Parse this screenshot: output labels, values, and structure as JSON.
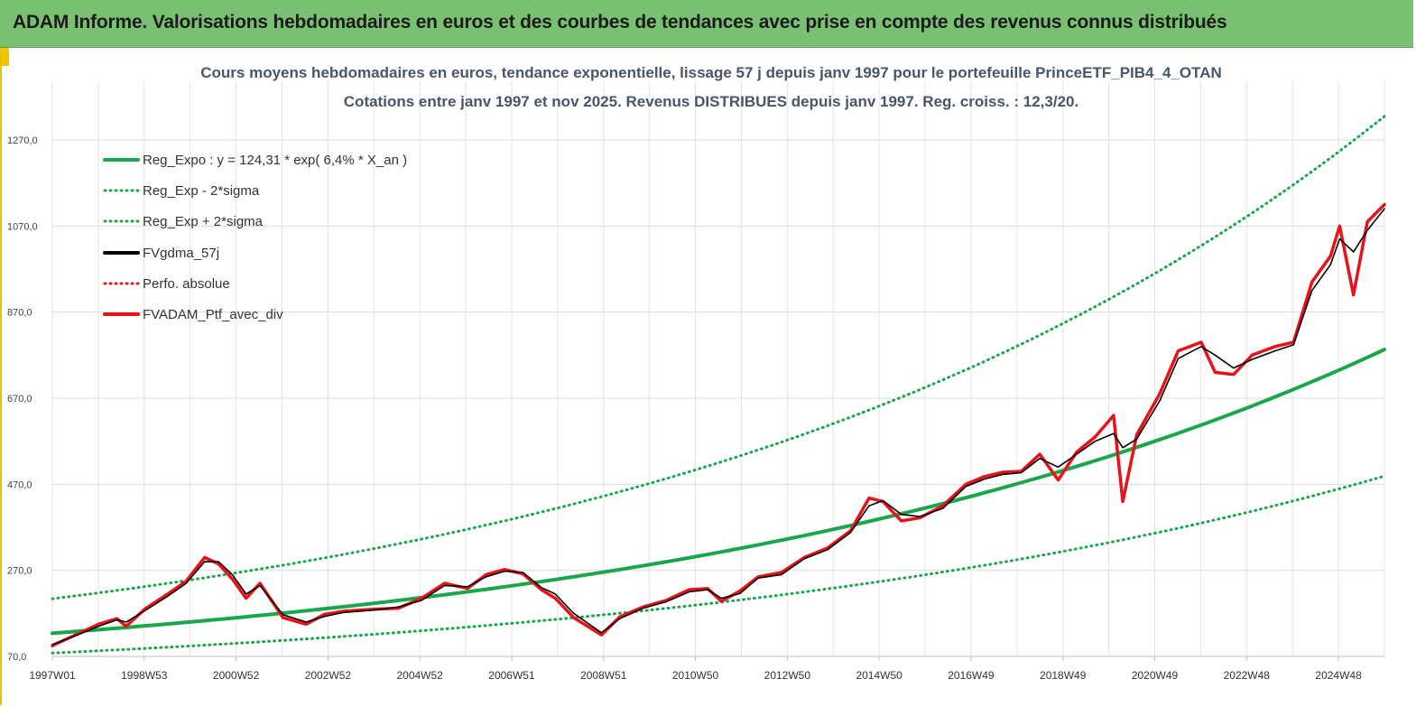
{
  "banner": {
    "title": "ADAM Informe. Valorisations hebdomadaires en euros et des courbes de tendances avec prise en compte des revenus connus distribués"
  },
  "colors": {
    "banner_bg": "#79c072",
    "trend_green": "#1aa64a",
    "series_black": "#000000",
    "series_red": "#e8131a"
  },
  "chart_data": {
    "type": "line",
    "title": "Cours moyens hebdomadaires  en euros, tendance exponentielle, lissage 57 j depuis janv 1997 pour le portefeuille PrinceETF_PIB4_4_OTAN",
    "subtitle": "Cotations  entre janv 1997 et nov 2025. Revenus DISTRIBUES depuis janv 1997. Reg. croiss. : 12,3/20.",
    "xlabel": "",
    "ylabel": "",
    "ylim": [
      70,
      1370
    ],
    "yticks": [
      "70,0",
      "270,0",
      "470,0",
      "670,0",
      "870,0",
      "1070,0",
      "1270,0"
    ],
    "yticks_values": [
      70,
      270,
      470,
      670,
      870,
      1070,
      1270
    ],
    "xticks": [
      "1997W01",
      "1998W53",
      "2000W52",
      "2002W52",
      "2004W52",
      "2006W51",
      "2008W51",
      "2010W50",
      "2012W50",
      "2014W50",
      "2016W49",
      "2018W49",
      "2020W49",
      "2022W48",
      "2024W48"
    ],
    "xrange_years": [
      1997.0,
      2025.87
    ],
    "grid": true,
    "legend_position": "top-left",
    "series": [
      {
        "name": "Reg_Expo : y = 124,31 * exp( 6,4% *  X_an )",
        "style": "solid",
        "color": "#1aa64a",
        "x": [
          1997,
          1999,
          2001,
          2003,
          2005,
          2007,
          2009,
          2011,
          2013,
          2015,
          2017,
          2019,
          2021,
          2023,
          2025.87
        ],
        "values": [
          124,
          141,
          160,
          182,
          207,
          235,
          267,
          303,
          344,
          391,
          443,
          504,
          572,
          650,
          783
        ]
      },
      {
        "name": "Reg_Exp - 2*sigma",
        "style": "dotted",
        "color": "#1aa64a",
        "x": [
          1997,
          1999,
          2001,
          2003,
          2005,
          2007,
          2009,
          2011,
          2013,
          2015,
          2017,
          2019,
          2021,
          2023,
          2025.87
        ],
        "values": [
          78,
          89,
          101,
          114,
          130,
          148,
          168,
          190,
          216,
          246,
          279,
          317,
          360,
          409,
          489
        ]
      },
      {
        "name": "Reg_Exp + 2*sigma",
        "style": "dotted",
        "color": "#1aa64a",
        "x": [
          1997,
          1999,
          2001,
          2003,
          2005,
          2007,
          2009,
          2011,
          2013,
          2015,
          2017,
          2019,
          2021,
          2023,
          2025.87
        ],
        "values": [
          204,
          232,
          263,
          299,
          340,
          386,
          438,
          498,
          565,
          642,
          729,
          829,
          941,
          1069,
          1325
        ]
      },
      {
        "name": "FVgdma_57j",
        "style": "solid",
        "color": "#000000",
        "x": [
          1997.0,
          1997.5,
          1998.0,
          1998.4,
          1998.6,
          1999.0,
          1999.5,
          1999.9,
          2000.3,
          2000.6,
          2000.9,
          2001.2,
          2001.5,
          2002.0,
          2002.5,
          2002.9,
          2003.3,
          2004.0,
          2004.5,
          2005.0,
          2005.5,
          2006.0,
          2006.4,
          2006.8,
          2007.2,
          2007.6,
          2007.9,
          2008.3,
          2008.9,
          2009.3,
          2009.8,
          2010.3,
          2010.8,
          2011.2,
          2011.5,
          2011.9,
          2012.3,
          2012.8,
          2013.3,
          2013.8,
          2014.3,
          2014.7,
          2015.0,
          2015.4,
          2015.8,
          2016.3,
          2016.8,
          2017.2,
          2017.6,
          2018.0,
          2018.4,
          2018.8,
          2019.2,
          2019.6,
          2020.0,
          2020.2,
          2020.5,
          2021.0,
          2021.4,
          2021.9,
          2022.2,
          2022.6,
          2023.0,
          2023.5,
          2023.9,
          2024.3,
          2024.7,
          2024.9,
          2025.2,
          2025.5,
          2025.87
        ],
        "values": [
          98,
          118,
          140,
          155,
          150,
          176,
          210,
          240,
          290,
          290,
          260,
          215,
          235,
          167,
          150,
          163,
          172,
          178,
          185,
          200,
          235,
          232,
          255,
          268,
          265,
          230,
          215,
          170,
          125,
          158,
          182,
          197,
          220,
          225,
          205,
          216,
          252,
          260,
          297,
          318,
          358,
          420,
          432,
          400,
          395,
          414,
          465,
          482,
          493,
          497,
          530,
          510,
          540,
          570,
          588,
          555,
          575,
          664,
          762,
          790,
          770,
          740,
          760,
          780,
          794,
          920,
          980,
          1040,
          1010,
          1060,
          1110
        ]
      },
      {
        "name": "Perfo. absolue",
        "style": "dotted",
        "color": "#e8131a",
        "x": [],
        "values": []
      },
      {
        "name": "FVADAM_Ptf_avec_div",
        "style": "solid",
        "color": "#e8131a",
        "x": [
          1997.0,
          1997.5,
          1998.0,
          1998.4,
          1998.6,
          1999.0,
          1999.5,
          1999.9,
          2000.3,
          2000.6,
          2000.9,
          2001.2,
          2001.5,
          2002.0,
          2002.5,
          2002.9,
          2003.3,
          2004.0,
          2004.5,
          2005.0,
          2005.5,
          2006.0,
          2006.4,
          2006.8,
          2007.2,
          2007.6,
          2007.9,
          2008.3,
          2008.9,
          2009.3,
          2009.8,
          2010.3,
          2010.8,
          2011.2,
          2011.5,
          2011.9,
          2012.3,
          2012.8,
          2013.3,
          2013.8,
          2014.3,
          2014.7,
          2015.0,
          2015.4,
          2015.8,
          2016.3,
          2016.8,
          2017.2,
          2017.6,
          2018.0,
          2018.4,
          2018.8,
          2019.2,
          2019.6,
          2020.0,
          2020.2,
          2020.5,
          2021.0,
          2021.4,
          2021.9,
          2022.2,
          2022.6,
          2023.0,
          2023.5,
          2023.9,
          2024.3,
          2024.7,
          2024.9,
          2025.2,
          2025.5,
          2025.87
        ],
        "values": [
          95,
          120,
          145,
          158,
          140,
          180,
          215,
          245,
          300,
          285,
          250,
          205,
          240,
          160,
          145,
          168,
          175,
          180,
          182,
          205,
          240,
          228,
          260,
          272,
          262,
          225,
          205,
          160,
          120,
          162,
          185,
          200,
          225,
          228,
          198,
          222,
          255,
          265,
          300,
          322,
          362,
          438,
          430,
          385,
          392,
          420,
          470,
          488,
          498,
          500,
          540,
          480,
          545,
          580,
          630,
          430,
          585,
          680,
          780,
          800,
          730,
          725,
          770,
          790,
          800,
          940,
          1000,
          1070,
          910,
          1080,
          1120
        ]
      }
    ]
  }
}
